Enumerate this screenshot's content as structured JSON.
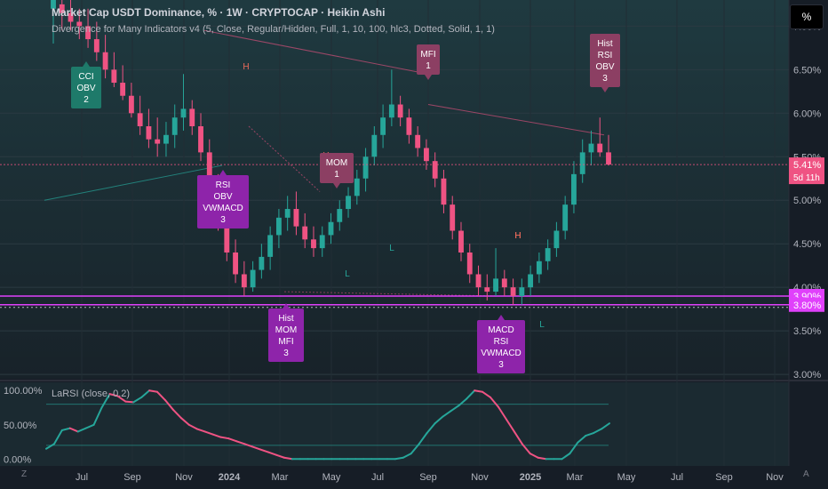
{
  "header": {
    "title": "Market Cap USDT Dominance, % · 1W · CRYPTOCAP · Heikin Ashi",
    "subtitle": "Divergence for Many Indicators v4 (5, Close, Regular/Hidden, Full, 1, 10, 100, hlc3, Dotted, Solid, 1, 1)"
  },
  "scale_button": "%",
  "oscillator_label": "LaRSI (close, 0.2)",
  "corner_left": "Z",
  "corner_right": "A",
  "colors": {
    "background": "#131722",
    "up": "#26a69a",
    "down": "#ef5383",
    "osc_up": "#26a69a",
    "osc_down": "#ef5383",
    "level_magenta": "#e040fb",
    "div_label_green": "#1e7a6a",
    "div_label_purple": "#8e24aa",
    "div_label_pink": "#8c3f63"
  },
  "chart_data": [
    {
      "type": "candlestick",
      "title": "Market Cap USDT Dominance, % · 1W · CRYPTOCAP · Heikin Ashi",
      "y_axis": {
        "ticks": [
          "3.00%",
          "3.50%",
          "4.00%",
          "4.50%",
          "5.00%",
          "5.50%",
          "6.00%",
          "6.50%",
          "7.00%"
        ],
        "range": [
          2.95,
          7.3
        ]
      },
      "x_axis": {
        "ticks": [
          "Jul",
          "Sep",
          "Nov",
          "2024",
          "Mar",
          "May",
          "Jul",
          "Sep",
          "Nov",
          "2025",
          "Mar",
          "May",
          "Jul",
          "Sep",
          "Nov"
        ],
        "bold_ticks": [
          "2024",
          "2025"
        ]
      },
      "candles": [
        [
          7.2,
          7.3,
          6.8,
          7.3
        ],
        [
          7.25,
          7.3,
          6.95,
          7.15
        ],
        [
          7.15,
          7.3,
          6.95,
          7.05
        ],
        [
          7.05,
          7.2,
          6.85,
          7.0
        ],
        [
          7.0,
          7.2,
          6.75,
          6.85
        ],
        [
          6.85,
          7.05,
          6.6,
          6.7
        ],
        [
          6.7,
          6.9,
          6.4,
          6.5
        ],
        [
          6.5,
          6.7,
          6.3,
          6.35
        ],
        [
          6.35,
          6.55,
          6.15,
          6.2
        ],
        [
          6.2,
          6.35,
          5.95,
          6.0
        ],
        [
          6.0,
          6.2,
          5.75,
          5.85
        ],
        [
          5.85,
          6.05,
          5.6,
          5.7
        ],
        [
          5.7,
          5.95,
          5.5,
          5.65
        ],
        [
          5.65,
          5.9,
          5.5,
          5.75
        ],
        [
          5.75,
          6.1,
          5.6,
          5.95
        ],
        [
          5.95,
          6.45,
          5.8,
          6.05
        ],
        [
          6.05,
          6.15,
          5.75,
          5.85
        ],
        [
          5.85,
          6.0,
          5.45,
          5.55
        ],
        [
          5.55,
          5.7,
          5.05,
          5.15
        ],
        [
          5.15,
          5.3,
          4.65,
          4.75
        ],
        [
          4.75,
          4.9,
          4.3,
          4.4
        ],
        [
          4.4,
          4.55,
          4.05,
          4.15
        ],
        [
          4.15,
          4.3,
          3.9,
          4.0
        ],
        [
          4.0,
          4.3,
          3.95,
          4.2
        ],
        [
          4.2,
          4.5,
          4.1,
          4.35
        ],
        [
          4.35,
          4.7,
          4.2,
          4.6
        ],
        [
          4.6,
          4.9,
          4.45,
          4.8
        ],
        [
          4.8,
          5.05,
          4.65,
          4.9
        ],
        [
          4.9,
          5.1,
          4.6,
          4.7
        ],
        [
          4.7,
          4.85,
          4.45,
          4.55
        ],
        [
          4.55,
          4.7,
          4.35,
          4.45
        ],
        [
          4.45,
          4.7,
          4.35,
          4.6
        ],
        [
          4.6,
          4.85,
          4.5,
          4.75
        ],
        [
          4.75,
          5.0,
          4.65,
          4.9
        ],
        [
          4.9,
          5.15,
          4.8,
          5.05
        ],
        [
          5.05,
          5.35,
          4.95,
          5.25
        ],
        [
          5.25,
          5.6,
          5.1,
          5.5
        ],
        [
          5.5,
          5.85,
          5.4,
          5.75
        ],
        [
          5.75,
          6.1,
          5.6,
          5.95
        ],
        [
          5.95,
          6.5,
          5.85,
          6.1
        ],
        [
          6.1,
          6.2,
          5.85,
          5.95
        ],
        [
          5.95,
          6.05,
          5.65,
          5.75
        ],
        [
          5.75,
          5.85,
          5.5,
          5.6
        ],
        [
          5.6,
          5.7,
          5.35,
          5.45
        ],
        [
          5.45,
          5.55,
          5.15,
          5.25
        ],
        [
          5.25,
          5.35,
          4.85,
          4.95
        ],
        [
          4.95,
          5.05,
          4.55,
          4.65
        ],
        [
          4.65,
          4.75,
          4.3,
          4.4
        ],
        [
          4.4,
          4.5,
          4.05,
          4.15
        ],
        [
          4.15,
          4.25,
          3.9,
          4.0
        ],
        [
          4.0,
          4.15,
          3.85,
          3.95
        ],
        [
          3.95,
          4.45,
          3.9,
          4.1
        ],
        [
          4.1,
          4.2,
          3.9,
          4.0
        ],
        [
          4.0,
          4.1,
          3.8,
          3.9
        ],
        [
          3.9,
          4.1,
          3.8,
          4.0
        ],
        [
          4.0,
          4.25,
          3.9,
          4.15
        ],
        [
          4.15,
          4.4,
          4.05,
          4.3
        ],
        [
          4.3,
          4.55,
          4.2,
          4.45
        ],
        [
          4.45,
          4.75,
          4.35,
          4.65
        ],
        [
          4.65,
          5.05,
          4.55,
          4.95
        ],
        [
          4.95,
          5.45,
          4.85,
          5.3
        ],
        [
          5.3,
          5.7,
          5.2,
          5.55
        ],
        [
          5.55,
          5.8,
          5.4,
          5.65
        ],
        [
          5.65,
          5.95,
          5.5,
          5.55
        ],
        [
          5.55,
          5.75,
          5.4,
          5.41
        ]
      ],
      "last_price": "5.41%",
      "countdown": "5d 11h",
      "levels": [
        "3.90%",
        "3.80%"
      ],
      "pivot_labels": [
        "H",
        "H",
        "H",
        "L",
        "L",
        "H",
        "L"
      ],
      "divergence_labels": [
        {
          "lines": [
            "CCI",
            "OBV",
            "2"
          ],
          "style": "bullish-hidden"
        },
        {
          "lines": [
            "RSI",
            "OBV",
            "VWMACD",
            "3"
          ],
          "style": "bullish"
        },
        {
          "lines": [
            "Hist",
            "MOM",
            "MFI",
            "3"
          ],
          "style": "bullish"
        },
        {
          "lines": [
            "MOM",
            "1"
          ],
          "style": "bearish"
        },
        {
          "lines": [
            "MFI",
            "1"
          ],
          "style": "bearish"
        },
        {
          "lines": [
            "MACD",
            "RSI",
            "VWMACD",
            "3"
          ],
          "style": "bullish"
        },
        {
          "lines": [
            "Hist",
            "RSI",
            "OBV",
            "3"
          ],
          "style": "bearish"
        }
      ]
    },
    {
      "type": "line",
      "title": "LaRSI (close, 0.2)",
      "y_axis": {
        "ticks": [
          "0.00%",
          "50.00%",
          "100.00%"
        ],
        "range": [
          -10,
          112
        ]
      },
      "series": [
        {
          "values": [
            15,
            22,
            42,
            45,
            40,
            45,
            50,
            75,
            95,
            92,
            84,
            83,
            90,
            100,
            98,
            86,
            72,
            60,
            50,
            44,
            40,
            36,
            32,
            30,
            26,
            22,
            18,
            14,
            10,
            6,
            2,
            0,
            0,
            0,
            0,
            0,
            0,
            0,
            0,
            0,
            0,
            0,
            0,
            0,
            0,
            2,
            8,
            22,
            38,
            52,
            62,
            70,
            78,
            88,
            100,
            98,
            90,
            76,
            58,
            40,
            22,
            8,
            2,
            0,
            0,
            0,
            8,
            24,
            34,
            38,
            44,
            52
          ]
        }
      ],
      "reference_lines": [
        80,
        20
      ]
    }
  ]
}
